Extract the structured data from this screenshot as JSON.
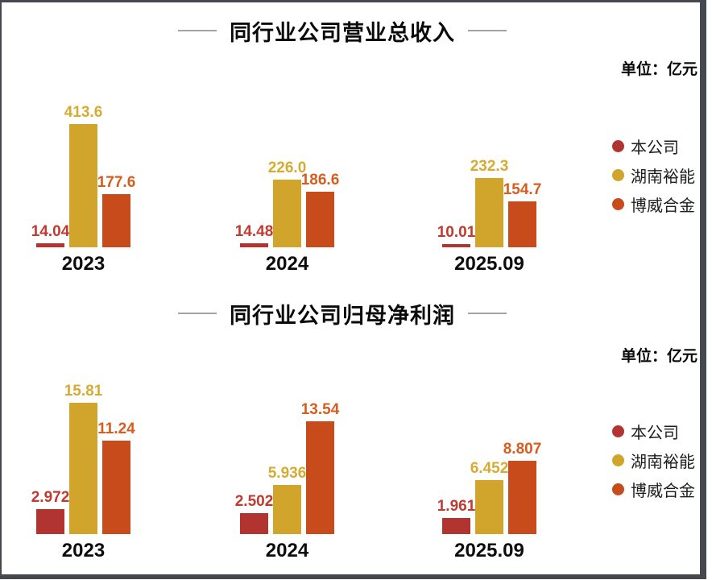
{
  "page": {
    "frame_color": "#47474f",
    "background": "#ffffff",
    "dash_color": "#a3a3a3"
  },
  "chart_data": [
    {
      "type": "bar",
      "title": "同行业公司营业总收入",
      "unit": "单位：亿元",
      "categories": [
        "2023",
        "2024",
        "2025.09"
      ],
      "series": [
        {
          "name": "本公司",
          "color": "#b23431",
          "label_color": "#c13a30",
          "values": [
            14.04,
            14.48,
            10.01
          ],
          "labels": [
            "14.04",
            "14.48",
            "10.01"
          ]
        },
        {
          "name": "湖南裕能",
          "color": "#d1a42b",
          "label_color": "#d6ab32",
          "values": [
            413.6,
            226.0,
            232.3
          ],
          "labels": [
            "413.6",
            "226.0",
            "232.3"
          ]
        },
        {
          "name": "博威合金",
          "color": "#c84b1c",
          "label_color": "#d75c1f",
          "values": [
            177.6,
            186.6,
            154.7
          ],
          "labels": [
            "177.6",
            "186.6",
            "154.7"
          ]
        }
      ],
      "legend_position": "right",
      "grid": false,
      "xlabel": "",
      "ylabel": "",
      "ylim": [
        0,
        440
      ]
    },
    {
      "type": "bar",
      "title": "同行业公司归母净利润",
      "unit": "单位：亿元",
      "categories": [
        "2023",
        "2024",
        "2025.09"
      ],
      "series": [
        {
          "name": "本公司",
          "color": "#b23431",
          "label_color": "#c13a30",
          "values": [
            2.972,
            2.502,
            1.961
          ],
          "labels": [
            "2.972",
            "2.502",
            "1.961"
          ]
        },
        {
          "name": "湖南裕能",
          "color": "#d1a42b",
          "label_color": "#d6ab32",
          "values": [
            15.81,
            5.936,
            6.452
          ],
          "labels": [
            "15.81",
            "5.936",
            "6.452"
          ]
        },
        {
          "name": "博威合金",
          "color": "#c84b1c",
          "label_color": "#d75c1f",
          "values": [
            11.24,
            13.54,
            8.807
          ],
          "labels": [
            "11.24",
            "13.54",
            "8.807"
          ]
        }
      ],
      "legend_position": "right",
      "grid": false,
      "xlabel": "",
      "ylabel": "",
      "ylim": [
        0,
        17
      ]
    }
  ]
}
